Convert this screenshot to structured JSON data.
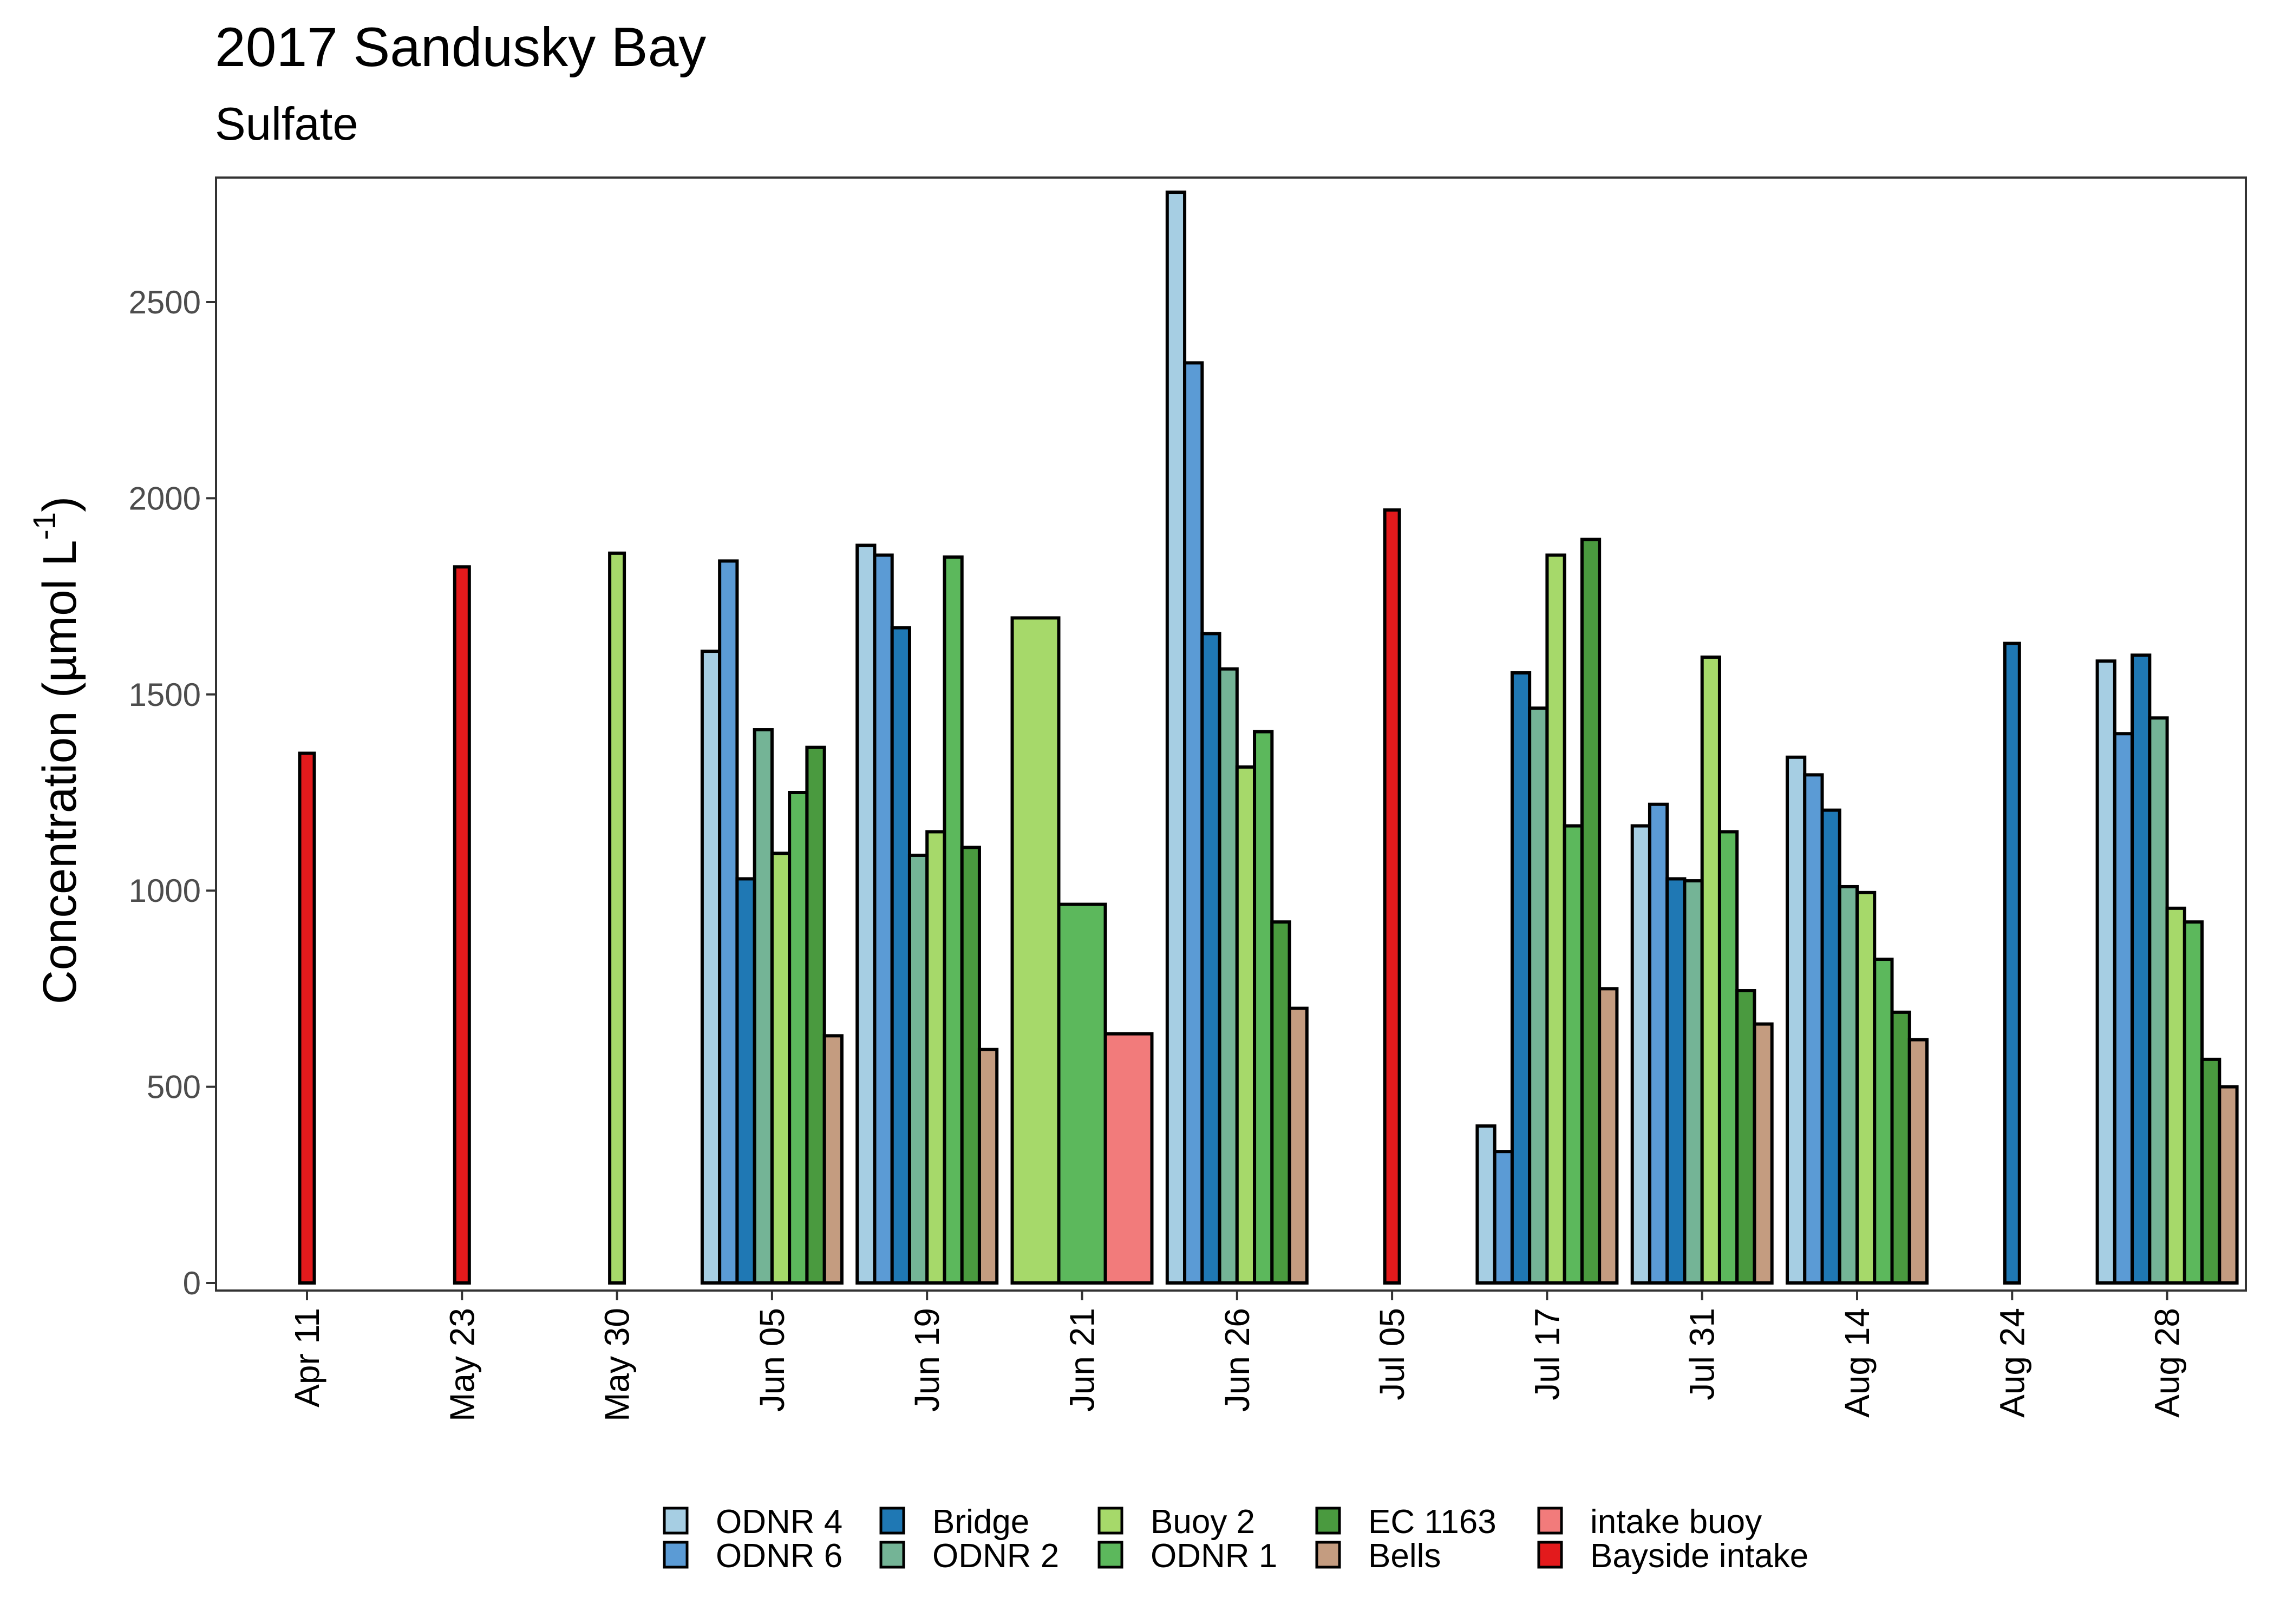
{
  "chart_data": {
    "type": "bar",
    "title": "2017 Sandusky Bay",
    "subtitle": "Sulfate",
    "ylabel": {
      "main": "Concentration (µmol L",
      "sup": "-1",
      "close": ")"
    },
    "xlabel": "",
    "ylim": [
      0,
      2820
    ],
    "yticks": [
      0,
      500,
      1000,
      1500,
      2000,
      2500
    ],
    "ytick_labels": [
      "0",
      "500",
      "1000",
      "1500",
      "2000",
      "2500"
    ],
    "grid": false,
    "legend_position": "bottom",
    "categories": [
      "Apr 11",
      "May 23",
      "May 30",
      "Jun 05",
      "Jun 19",
      "Jun 21",
      "Jun 26",
      "Jul 05",
      "Jul 17",
      "Jul 31",
      "Aug 14",
      "Aug 24",
      "Aug 28"
    ],
    "series": [
      {
        "name": "ODNR 4",
        "color": "#a6cee3",
        "values": [
          null,
          null,
          null,
          1610,
          1880,
          null,
          2780,
          null,
          400,
          1165,
          1340,
          null,
          1585
        ]
      },
      {
        "name": "ODNR 6",
        "color": "#5b9bd5",
        "values": [
          null,
          null,
          null,
          1840,
          1855,
          null,
          2345,
          null,
          335,
          1220,
          1295,
          null,
          1400
        ]
      },
      {
        "name": "Bridge",
        "color": "#1f78b4",
        "values": [
          null,
          null,
          null,
          1030,
          1670,
          null,
          1655,
          null,
          1555,
          1030,
          1205,
          1630,
          1600
        ]
      },
      {
        "name": "ODNR 2",
        "color": "#74b496",
        "values": [
          null,
          null,
          null,
          1410,
          1090,
          null,
          1565,
          null,
          1465,
          1025,
          1010,
          null,
          1440
        ]
      },
      {
        "name": "Buoy 2",
        "color": "#a6d96a",
        "values": [
          null,
          null,
          1860,
          1095,
          1150,
          1695,
          1315,
          null,
          1855,
          1595,
          995,
          null,
          955
        ]
      },
      {
        "name": "ODNR 1",
        "color": "#5cb85c",
        "values": [
          null,
          null,
          null,
          1250,
          1850,
          965,
          1405,
          null,
          1165,
          1150,
          825,
          null,
          920
        ]
      },
      {
        "name": "EC 1163",
        "color": "#4a9a3f",
        "values": [
          null,
          null,
          null,
          1365,
          1110,
          null,
          920,
          null,
          1895,
          745,
          690,
          null,
          570
        ]
      },
      {
        "name": "Bells",
        "color": "#c49c80",
        "values": [
          null,
          null,
          null,
          630,
          595,
          null,
          700,
          null,
          750,
          660,
          620,
          null,
          500
        ]
      },
      {
        "name": "intake buoy",
        "color": "#f27b7b",
        "values": [
          null,
          null,
          null,
          null,
          null,
          635,
          null,
          null,
          null,
          null,
          null,
          null,
          null
        ]
      },
      {
        "name": "Bayside intake",
        "color": "#e31a1c",
        "values": [
          1350,
          1825,
          null,
          null,
          null,
          null,
          null,
          1970,
          null,
          null,
          null,
          null,
          null
        ]
      }
    ]
  }
}
